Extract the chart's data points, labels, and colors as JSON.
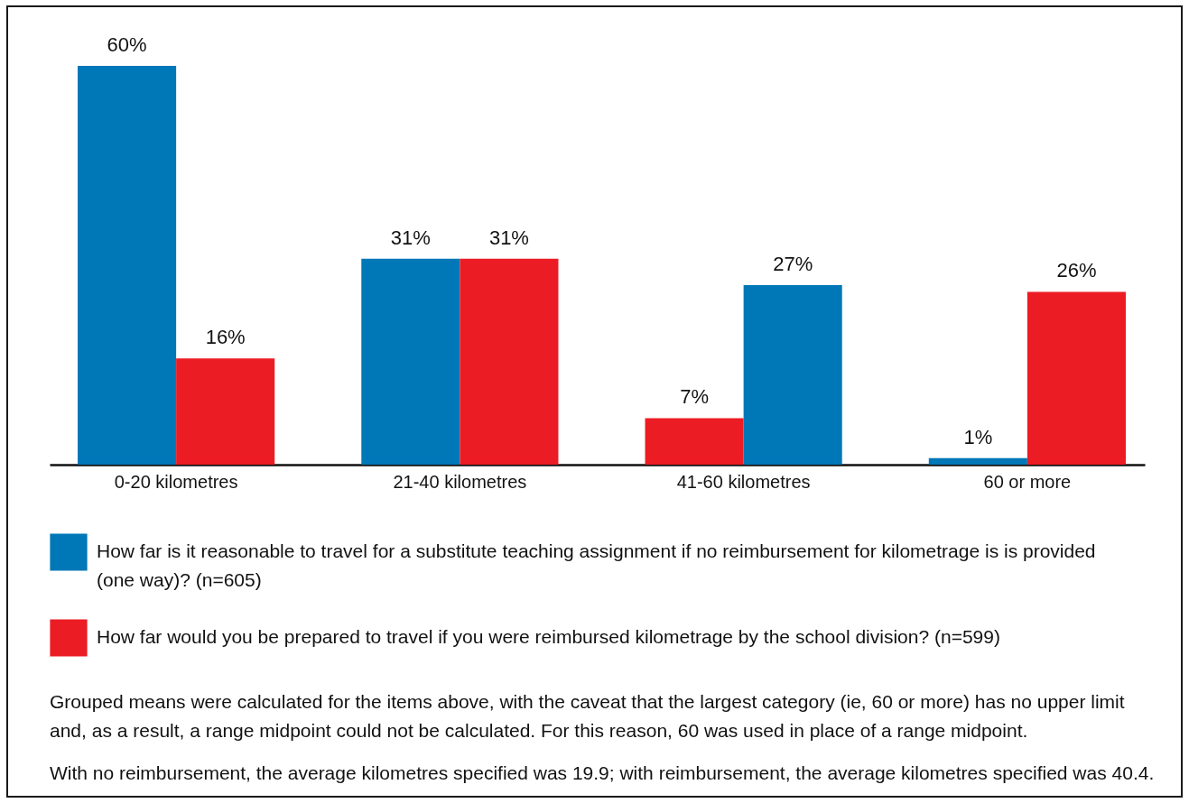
{
  "chart_data": {
    "type": "bar",
    "categories": [
      "0-20 kilometres",
      "21-40 kilometres",
      "41-60 kilometres",
      "60 or more"
    ],
    "series": [
      {
        "name": "How far is it reasonable to travel for a substitute teaching assignment if no reimbursement for kilometrage is is provided (one way)? (n=605)",
        "color": "#0077b7",
        "colors": [
          "#0077b7",
          "#0077b7",
          "#ec1c24",
          "#0077b7"
        ],
        "values": [
          60,
          31,
          7,
          1
        ],
        "value_labels": [
          "60%",
          "31%",
          "7%",
          "1%"
        ]
      },
      {
        "name": "How far would you be prepared to travel if you were reimbursed kilometrage by the school division? (n=599)",
        "color": "#ec1c24",
        "colors": [
          "#ec1c24",
          "#ec1c24",
          "#0077b7",
          "#ec1c24"
        ],
        "values": [
          16,
          31,
          27,
          26
        ],
        "value_labels": [
          "16%",
          "31%",
          "27%",
          "26%"
        ]
      }
    ],
    "legend": "bottom",
    "annotations": [
      "Grouped means were calculated for the items above, with the caveat that the largest category (ie, 60 or more) has no upper limit and, as a result, a range midpoint could not be calculated. For this reason, 60 was used in place of a range midpoint.",
      "With no reimbursement, the average kilometres specified was 19.9; with reimbursement, the average kilometres specified was 40.4."
    ]
  }
}
